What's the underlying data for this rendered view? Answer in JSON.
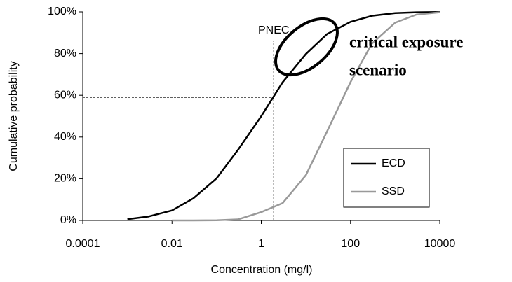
{
  "chart_data": {
    "type": "line",
    "x_label": "Concentration (mg/l)",
    "y_label": "Cumulative probability",
    "log_x": true,
    "xlim": [
      0.0001,
      10000
    ],
    "xticks": [
      0.0001,
      0.01,
      1,
      100,
      10000
    ],
    "ylim": [
      0,
      100
    ],
    "yticks": [
      {
        "value": 0,
        "label": "0%"
      },
      {
        "value": 20,
        "label": "20%"
      },
      {
        "value": 40,
        "label": "40%"
      },
      {
        "value": 60,
        "label": "60%"
      },
      {
        "value": 80,
        "label": "80%"
      },
      {
        "value": 100,
        "label": "100%"
      }
    ],
    "x": [
      0.001,
      0.003,
      0.01,
      0.03,
      0.1,
      0.3,
      1,
      3,
      10,
      30,
      100,
      300,
      1000,
      3000,
      10000
    ],
    "series": [
      {
        "name": "ECD",
        "color": "#000000",
        "values": [
          0.6,
          1.9,
          4.8,
          10.6,
          20.2,
          33.8,
          50,
          66.2,
          79.8,
          89.4,
          95.2,
          98.1,
          99.4,
          99.8,
          99.9
        ]
      },
      {
        "name": "SSD",
        "color": "#999999",
        "values": [
          null,
          null,
          0,
          0.02,
          0.07,
          0.5,
          4,
          8.3,
          21.7,
          42.8,
          66.3,
          84.7,
          94.8,
          98.7,
          99.8
        ]
      }
    ],
    "legend": "lower right",
    "pnec": {
      "label": "PNEC",
      "x": 1.9,
      "y": 59
    },
    "annotation": [
      "critical exposure",
      "scenario"
    ]
  }
}
